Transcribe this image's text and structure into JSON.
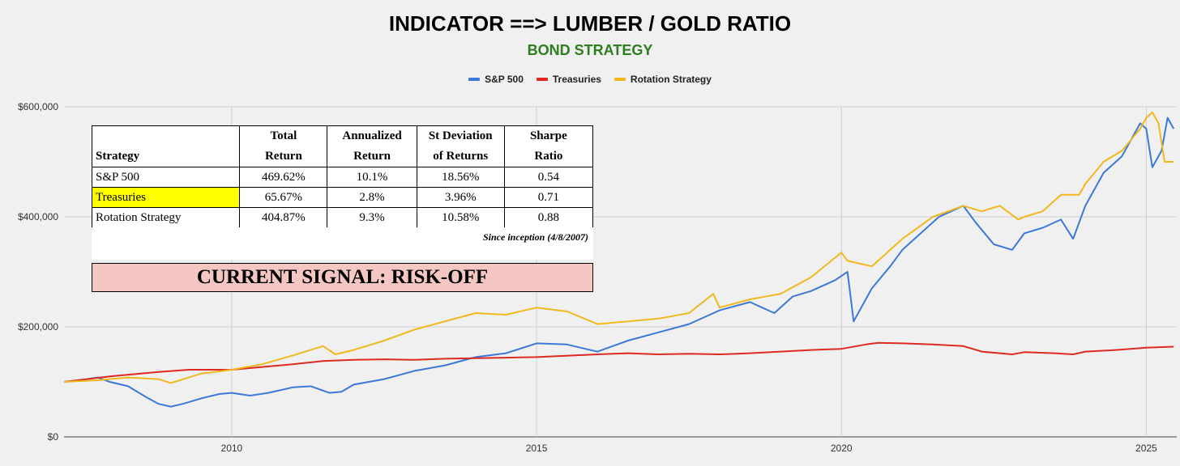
{
  "chart_data": {
    "type": "line",
    "title": "INDICATOR ==> LUMBER / GOLD RATIO",
    "subtitle": "BOND STRATEGY",
    "xlabel": "",
    "ylabel": "",
    "xlim": [
      2007.25,
      2025.5
    ],
    "ylim": [
      0,
      600000
    ],
    "y_ticks": [
      0,
      200000,
      400000,
      600000
    ],
    "y_tick_labels": [
      "$0",
      "$200,000",
      "$400,000",
      "$600,000"
    ],
    "x_ticks": [
      2010,
      2015,
      2020,
      2025
    ],
    "x_tick_labels": [
      "2010",
      "2015",
      "2020",
      "2025"
    ],
    "grid": true,
    "legend_position": "top-center",
    "series": [
      {
        "name": "S&P 500",
        "color": "#3c78d8",
        "x": [
          2007.25,
          2007.5,
          2007.8,
          2008.0,
          2008.3,
          2008.6,
          2008.8,
          2009.0,
          2009.2,
          2009.5,
          2009.8,
          2010.0,
          2010.3,
          2010.6,
          2011.0,
          2011.3,
          2011.6,
          2011.8,
          2012.0,
          2012.5,
          2013.0,
          2013.5,
          2014.0,
          2014.5,
          2015.0,
          2015.5,
          2015.8,
          2016.0,
          2016.5,
          2017.0,
          2017.5,
          2018.0,
          2018.5,
          2018.9,
          2019.2,
          2019.5,
          2019.9,
          2020.1,
          2020.2,
          2020.5,
          2020.8,
          2021.0,
          2021.3,
          2021.6,
          2021.8,
          2022.0,
          2022.2,
          2022.5,
          2022.8,
          2023.0,
          2023.3,
          2023.6,
          2023.8,
          2024.0,
          2024.3,
          2024.6,
          2024.9,
          2025.0,
          2025.1,
          2025.25,
          2025.35,
          2025.45
        ],
        "values": [
          100000,
          103000,
          108000,
          100000,
          92000,
          72000,
          60000,
          55000,
          60000,
          70000,
          78000,
          80000,
          75000,
          80000,
          90000,
          92000,
          80000,
          82000,
          95000,
          105000,
          120000,
          130000,
          145000,
          152000,
          170000,
          168000,
          160000,
          155000,
          175000,
          190000,
          205000,
          230000,
          245000,
          225000,
          255000,
          265000,
          285000,
          300000,
          210000,
          270000,
          310000,
          340000,
          370000,
          400000,
          410000,
          420000,
          390000,
          350000,
          340000,
          370000,
          380000,
          395000,
          360000,
          420000,
          480000,
          510000,
          570000,
          560000,
          490000,
          520000,
          580000,
          560000
        ]
      },
      {
        "name": "Treasuries",
        "color": "#dc2a22",
        "x": [
          2007.25,
          2008.0,
          2008.8,
          2009.3,
          2010.0,
          2010.5,
          2011.0,
          2011.5,
          2012.0,
          2012.5,
          2013.0,
          2013.5,
          2014.0,
          2015.0,
          2016.0,
          2016.5,
          2017.0,
          2017.5,
          2018.0,
          2018.5,
          2019.0,
          2019.5,
          2020.0,
          2020.4,
          2020.6,
          2021.0,
          2021.5,
          2022.0,
          2022.3,
          2022.8,
          2023.0,
          2023.5,
          2023.8,
          2024.0,
          2024.5,
          2025.0,
          2025.45
        ],
        "values": [
          100000,
          110000,
          118000,
          122000,
          122000,
          127000,
          132000,
          138000,
          140000,
          141000,
          140000,
          142000,
          143000,
          145000,
          150000,
          152000,
          150000,
          151000,
          150000,
          152000,
          155000,
          158000,
          160000,
          168000,
          171000,
          170000,
          168000,
          165000,
          155000,
          150000,
          154000,
          152000,
          150000,
          155000,
          158000,
          162000,
          164000
        ]
      },
      {
        "name": "Rotation Strategy",
        "color": "#f1b81e",
        "x": [
          2007.25,
          2007.8,
          2008.3,
          2008.8,
          2009.0,
          2009.5,
          2010.0,
          2010.5,
          2011.0,
          2011.5,
          2011.7,
          2012.0,
          2012.5,
          2013.0,
          2013.5,
          2014.0,
          2014.5,
          2015.0,
          2015.5,
          2016.0,
          2016.5,
          2017.0,
          2017.5,
          2017.9,
          2018.0,
          2018.5,
          2019.0,
          2019.5,
          2020.0,
          2020.1,
          2020.5,
          2020.8,
          2021.0,
          2021.5,
          2022.0,
          2022.3,
          2022.6,
          2022.9,
          2023.0,
          2023.3,
          2023.6,
          2023.9,
          2024.0,
          2024.3,
          2024.6,
          2024.9,
          2025.0,
          2025.1,
          2025.2,
          2025.3,
          2025.45
        ],
        "values": [
          100000,
          103000,
          108000,
          105000,
          98000,
          115000,
          122000,
          132000,
          148000,
          165000,
          150000,
          158000,
          175000,
          195000,
          210000,
          225000,
          222000,
          235000,
          228000,
          205000,
          210000,
          215000,
          225000,
          260000,
          235000,
          250000,
          260000,
          290000,
          335000,
          320000,
          310000,
          340000,
          360000,
          400000,
          420000,
          410000,
          420000,
          395000,
          400000,
          410000,
          440000,
          440000,
          460000,
          500000,
          520000,
          560000,
          580000,
          590000,
          570000,
          500000,
          500000
        ]
      }
    ],
    "table": {
      "headers": [
        [
          "",
          "Total",
          "Annualized",
          "St Deviation",
          "Sharpe"
        ],
        [
          "Strategy",
          "Return",
          "Return",
          "of Returns",
          "Ratio"
        ]
      ],
      "rows": [
        [
          "S&P 500",
          "469.62%",
          "10.1%",
          "18.56%",
          "0.54"
        ],
        [
          "Treasuries",
          "65.67%",
          "2.8%",
          "3.96%",
          "0.71"
        ],
        [
          "Rotation Strategy",
          "404.87%",
          "9.3%",
          "10.58%",
          "0.88"
        ]
      ],
      "highlight_color": "#ffff00",
      "footnote": "Since inception (4/8/2007)"
    },
    "signal": {
      "text": "CURRENT SIGNAL: RISK-OFF",
      "background": "#f4c7c3"
    }
  }
}
